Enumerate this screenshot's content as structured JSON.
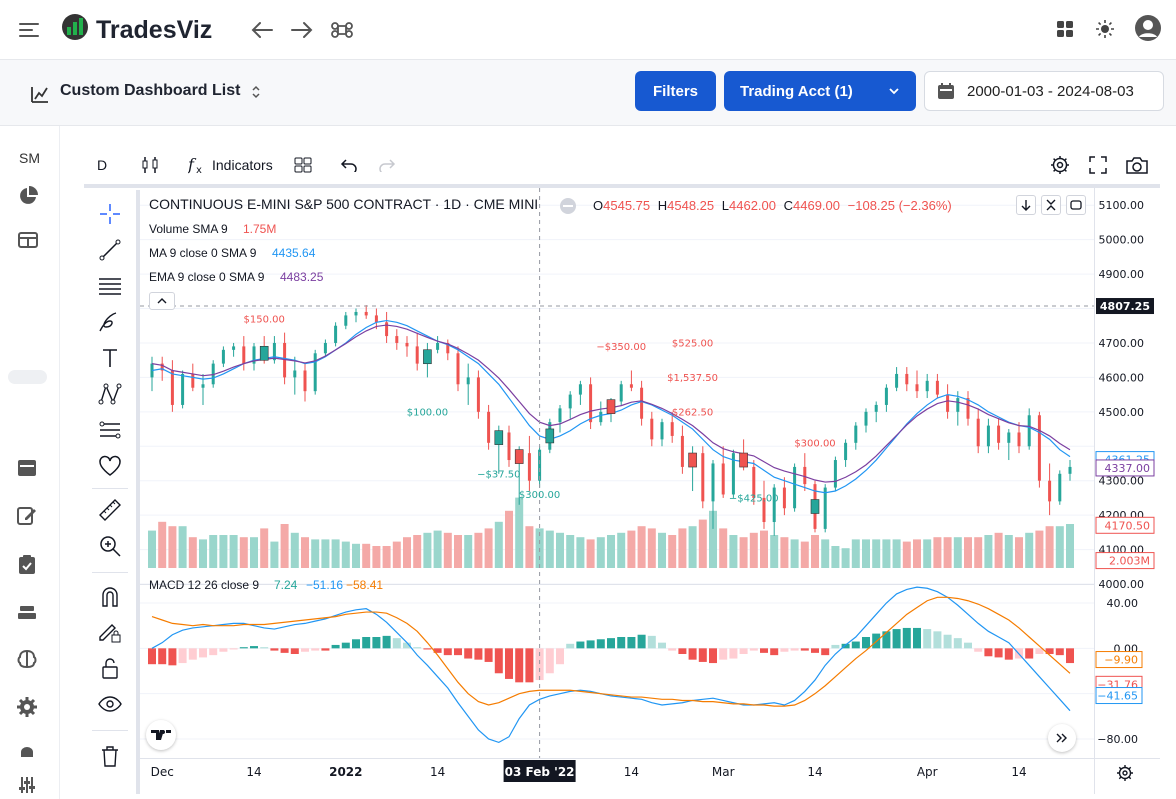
{
  "app": {
    "title": "TradesViz"
  },
  "subbar": {
    "dashboard_label": "Custom Dashboard List",
    "filters_label": "Filters",
    "account_label": "Trading Acct (1)",
    "date_range": "2000-01-03 - 2024-08-03"
  },
  "sidebar": {
    "sm_label": "SM"
  },
  "toolbar": {
    "interval": "D",
    "indicators_label": "Indicators"
  },
  "legend": {
    "symbol": "CONTINUOUS E-MINI S&P 500 CONTRACT · 1D · CME MINI",
    "o_label": "O",
    "o": "4545.75",
    "h_label": "H",
    "h": "4548.25",
    "l_label": "L",
    "l": "4462.00",
    "c_label": "C",
    "c": "4469.00",
    "change": "−108.25 (−2.36%)",
    "volume_label": "Volume SMA 9",
    "volume_value": "1.75M",
    "ma_label": "MA 9 close 0 SMA 9",
    "ma_value": "4435.64",
    "ema_label": "EMA 9 close 0 SMA 9",
    "ema_value": "4483.25",
    "macd_label": "MACD 12 26 close 9",
    "macd_v1": "7.24",
    "macd_v2": "−51.16",
    "macd_v3": "−58.41"
  },
  "price_axis": {
    "ticks": [
      "5100.00",
      "5000.00",
      "4900.00",
      "4807.25",
      "4700.00",
      "4600.00",
      "4500.00",
      "4361.25",
      "4337.00",
      "4300.00",
      "4200.00",
      "4170.50",
      "4100.00",
      "2.003M",
      "4000.00"
    ]
  },
  "macd_axis": {
    "ticks": [
      "40.00",
      "0.00",
      "−9.90",
      "−31.76",
      "−41.65",
      "−80.00"
    ]
  },
  "time_axis": {
    "ticks": [
      "Dec",
      "14",
      "2022",
      "14",
      "03 Feb '22",
      "14",
      "Mar",
      "14",
      "Apr",
      "14"
    ]
  },
  "trade_labels": [
    "$150.00",
    "$100.00",
    "−$37.50",
    "$300.00",
    "−$350.00",
    "$525.00",
    "$1,537.50",
    "$262.50",
    "−$425.00",
    "$300.00"
  ],
  "colors": {
    "accent": "#1759d1",
    "up": "#26a69a",
    "down": "#ef5350",
    "ma": "#2196f3",
    "ema": "#7b3fa0",
    "macd_signal": "#f57c00"
  },
  "chart_data": {
    "type": "candlestick",
    "title": "CONTINUOUS E-MINI S&P 500 CONTRACT · 1D · CME MINI",
    "ylim": [
      4000,
      5150
    ],
    "macd_ylim": [
      -95,
      55
    ],
    "crosshair_price": 4807.25,
    "x_labels": [
      "Dec",
      "14",
      "2022",
      "14",
      "03 Feb '22",
      "14",
      "Mar",
      "14",
      "Apr",
      "14"
    ],
    "x_label_index": [
      1,
      10,
      19,
      28,
      38,
      47,
      56,
      65,
      76,
      85
    ],
    "candles": [
      [
        4600,
        4660,
        4560,
        4640
      ],
      [
        4640,
        4660,
        4590,
        4620
      ],
      [
        4620,
        4650,
        4500,
        4520
      ],
      [
        4520,
        4620,
        4510,
        4610
      ],
      [
        4610,
        4640,
        4560,
        4570
      ],
      [
        4570,
        4610,
        4520,
        4580
      ],
      [
        4580,
        4650,
        4570,
        4640
      ],
      [
        4640,
        4690,
        4630,
        4680
      ],
      [
        4680,
        4700,
        4660,
        4690
      ],
      [
        4690,
        4720,
        4620,
        4640
      ],
      [
        4640,
        4700,
        4620,
        4690
      ],
      [
        4690,
        4720,
        4640,
        4650
      ],
      [
        4650,
        4720,
        4640,
        4700
      ],
      [
        4700,
        4730,
        4580,
        4600
      ],
      [
        4600,
        4660,
        4550,
        4620
      ],
      [
        4620,
        4640,
        4530,
        4560
      ],
      [
        4560,
        4680,
        4550,
        4670
      ],
      [
        4670,
        4710,
        4660,
        4700
      ],
      [
        4700,
        4760,
        4690,
        4750
      ],
      [
        4750,
        4790,
        4740,
        4780
      ],
      [
        4780,
        4800,
        4760,
        4790
      ],
      [
        4790,
        4810,
        4770,
        4780
      ],
      [
        4780,
        4800,
        4740,
        4760
      ],
      [
        4760,
        4790,
        4700,
        4720
      ],
      [
        4720,
        4740,
        4680,
        4700
      ],
      [
        4700,
        4720,
        4660,
        4690
      ],
      [
        4690,
        4730,
        4620,
        4640
      ],
      [
        4640,
        4700,
        4600,
        4680
      ],
      [
        4680,
        4720,
        4670,
        4700
      ],
      [
        4700,
        4710,
        4650,
        4670
      ],
      [
        4670,
        4690,
        4560,
        4580
      ],
      [
        4580,
        4640,
        4520,
        4600
      ],
      [
        4600,
        4620,
        4480,
        4500
      ],
      [
        4500,
        4520,
        4390,
        4410
      ],
      [
        4410,
        4460,
        4320,
        4440
      ],
      [
        4440,
        4460,
        4340,
        4360
      ],
      [
        4360,
        4400,
        4230,
        4380
      ],
      [
        4380,
        4430,
        4270,
        4300
      ],
      [
        4300,
        4400,
        4280,
        4390
      ],
      [
        4390,
        4480,
        4380,
        4470
      ],
      [
        4470,
        4520,
        4440,
        4510
      ],
      [
        4510,
        4560,
        4480,
        4550
      ],
      [
        4550,
        4590,
        4520,
        4580
      ],
      [
        4580,
        4600,
        4450,
        4470
      ],
      [
        4470,
        4530,
        4460,
        4500
      ],
      [
        4500,
        4540,
        4470,
        4530
      ],
      [
        4530,
        4590,
        4520,
        4580
      ],
      [
        4580,
        4620,
        4560,
        4570
      ],
      [
        4570,
        4590,
        4460,
        4480
      ],
      [
        4480,
        4500,
        4400,
        4420
      ],
      [
        4420,
        4480,
        4400,
        4470
      ],
      [
        4470,
        4500,
        4410,
        4430
      ],
      [
        4430,
        4460,
        4320,
        4340
      ],
      [
        4340,
        4400,
        4270,
        4380
      ],
      [
        4380,
        4400,
        4220,
        4240
      ],
      [
        4240,
        4360,
        4160,
        4350
      ],
      [
        4350,
        4400,
        4250,
        4260
      ],
      [
        4260,
        4390,
        4250,
        4380
      ],
      [
        4380,
        4420,
        4330,
        4340
      ],
      [
        4340,
        4360,
        4230,
        4250
      ],
      [
        4250,
        4300,
        4160,
        4180
      ],
      [
        4180,
        4290,
        4140,
        4280
      ],
      [
        4280,
        4310,
        4200,
        4220
      ],
      [
        4220,
        4350,
        4210,
        4340
      ],
      [
        4340,
        4380,
        4270,
        4290
      ],
      [
        4290,
        4300,
        4150,
        4160
      ],
      [
        4160,
        4290,
        4150,
        4280
      ],
      [
        4280,
        4370,
        4270,
        4360
      ],
      [
        4360,
        4420,
        4340,
        4410
      ],
      [
        4410,
        4470,
        4390,
        4460
      ],
      [
        4460,
        4510,
        4440,
        4500
      ],
      [
        4500,
        4530,
        4470,
        4520
      ],
      [
        4520,
        4580,
        4500,
        4570
      ],
      [
        4570,
        4630,
        4560,
        4610
      ],
      [
        4610,
        4630,
        4560,
        4580
      ],
      [
        4580,
        4620,
        4540,
        4560
      ],
      [
        4560,
        4610,
        4540,
        4590
      ],
      [
        4590,
        4610,
        4540,
        4550
      ],
      [
        4550,
        4580,
        4480,
        4500
      ],
      [
        4500,
        4560,
        4460,
        4540
      ],
      [
        4540,
        4560,
        4460,
        4480
      ],
      [
        4480,
        4510,
        4380,
        4400
      ],
      [
        4400,
        4480,
        4380,
        4460
      ],
      [
        4460,
        4480,
        4390,
        4410
      ],
      [
        4410,
        4450,
        4360,
        4440
      ],
      [
        4440,
        4470,
        4380,
        4400
      ],
      [
        4400,
        4510,
        4390,
        4490
      ],
      [
        4490,
        4500,
        4280,
        4300
      ],
      [
        4300,
        4350,
        4200,
        4240
      ],
      [
        4240,
        4330,
        4230,
        4320
      ],
      [
        4320,
        4360,
        4300,
        4340
      ]
    ],
    "volume": [
      1.7,
      2.1,
      1.9,
      1.9,
      1.4,
      1.3,
      1.5,
      1.5,
      1.5,
      1.4,
      1.4,
      1.8,
      1.2,
      2.0,
      1.6,
      1.4,
      1.3,
      1.3,
      1.3,
      1.2,
      1.1,
      1.1,
      1.0,
      1.0,
      1.2,
      1.4,
      1.5,
      1.6,
      1.7,
      1.6,
      1.5,
      1.5,
      1.6,
      1.8,
      2.1,
      2.6,
      3.2,
      1.9,
      1.8,
      1.7,
      1.6,
      1.5,
      1.4,
      1.3,
      1.4,
      1.5,
      1.6,
      1.7,
      1.9,
      1.8,
      1.6,
      1.5,
      1.8,
      1.9,
      2.2,
      2.6,
      1.8,
      1.5,
      1.4,
      1.6,
      1.7,
      1.5,
      1.4,
      1.3,
      1.2,
      1.5,
      1.3,
      1.0,
      0.9,
      1.3,
      1.3,
      1.3,
      1.3,
      1.3,
      1.2,
      1.3,
      1.3,
      1.4,
      1.4,
      1.4,
      1.4,
      1.4,
      1.5,
      1.6,
      1.5,
      1.4,
      1.6,
      1.7,
      1.9,
      1.9,
      2.0
    ],
    "ma": [
      4620,
      4625,
      4610,
      4605,
      4600,
      4595,
      4598,
      4610,
      4625,
      4640,
      4650,
      4655,
      4660,
      4655,
      4650,
      4640,
      4645,
      4660,
      4680,
      4700,
      4725,
      4745,
      4760,
      4765,
      4760,
      4750,
      4735,
      4720,
      4705,
      4695,
      4680,
      4660,
      4640,
      4610,
      4580,
      4540,
      4500,
      4460,
      4430,
      4420,
      4430,
      4445,
      4465,
      4480,
      4490,
      4495,
      4505,
      4520,
      4530,
      4520,
      4505,
      4490,
      4470,
      4450,
      4420,
      4390,
      4370,
      4360,
      4355,
      4350,
      4330,
      4310,
      4300,
      4290,
      4280,
      4270,
      4265,
      4270,
      4285,
      4305,
      4330,
      4360,
      4395,
      4430,
      4465,
      4495,
      4520,
      4540,
      4550,
      4545,
      4535,
      4520,
      4500,
      4485,
      4470,
      4460,
      4455,
      4440,
      4420,
      4390,
      4370
    ],
    "ema": [
      4640,
      4635,
      4620,
      4615,
      4610,
      4605,
      4608,
      4618,
      4630,
      4640,
      4648,
      4652,
      4656,
      4652,
      4648,
      4642,
      4648,
      4662,
      4680,
      4698,
      4718,
      4735,
      4748,
      4752,
      4748,
      4740,
      4728,
      4716,
      4705,
      4697,
      4684,
      4668,
      4650,
      4625,
      4598,
      4565,
      4530,
      4495,
      4470,
      4460,
      4465,
      4478,
      4492,
      4502,
      4508,
      4512,
      4518,
      4528,
      4532,
      4522,
      4510,
      4495,
      4478,
      4460,
      4436,
      4410,
      4393,
      4384,
      4378,
      4372,
      4355,
      4338,
      4328,
      4320,
      4312,
      4302,
      4296,
      4298,
      4310,
      4326,
      4346,
      4372,
      4402,
      4432,
      4462,
      4488,
      4508,
      4524,
      4532,
      4528,
      4520,
      4508,
      4492,
      4480,
      4468,
      4460,
      4458,
      4446,
      4430,
      4408,
      4390
    ],
    "macd_hist": [
      -14,
      -14,
      -15,
      -13,
      -10,
      -8,
      -6,
      -3,
      -1,
      1,
      2,
      1,
      -2,
      -4,
      -5,
      -3,
      -2,
      -2,
      3,
      5,
      8,
      10,
      10,
      11,
      9,
      5,
      1,
      -1,
      -4,
      -6,
      -6,
      -9,
      -10,
      -12,
      -22,
      -27,
      -30,
      -30,
      -28,
      -22,
      -14,
      4,
      6,
      7,
      8,
      9,
      10,
      10,
      12,
      11,
      5,
      -2,
      -5,
      -10,
      -12,
      -13,
      -10,
      -9,
      -5,
      -2,
      -4,
      -6,
      -3,
      -2,
      -2,
      -4,
      -6,
      3,
      4,
      6,
      10,
      13,
      15,
      17,
      18,
      18,
      17,
      15,
      12,
      9,
      5,
      -3,
      -7,
      -8,
      -10,
      -9,
      -9,
      -5,
      -5,
      -6,
      -13
    ],
    "macd_line": [
      0,
      5,
      12,
      16,
      18,
      19,
      20,
      21,
      22,
      22,
      20,
      18,
      17,
      19,
      21,
      22,
      24,
      26,
      29,
      32,
      34,
      35,
      30,
      23,
      14,
      5,
      -6,
      -15,
      -25,
      -35,
      -48,
      -60,
      -72,
      -80,
      -83,
      -78,
      -62,
      -50,
      -45,
      -42,
      -40,
      -38,
      -37,
      -38,
      -40,
      -42,
      -43,
      -44,
      -45,
      -48,
      -50,
      -49,
      -48,
      -46,
      -45,
      -44,
      -46,
      -48,
      -50,
      -50,
      -49,
      -48,
      -50,
      -46,
      -38,
      -28,
      -15,
      -5,
      3,
      10,
      20,
      30,
      40,
      48,
      52,
      54,
      53,
      50,
      45,
      38,
      30,
      22,
      15,
      10,
      5,
      -5,
      -15,
      -25,
      -35,
      -45,
      -55
    ],
    "macd_signal": [
      28,
      25,
      22,
      21,
      20,
      21,
      20,
      20,
      20,
      21,
      21,
      21,
      22,
      23,
      24,
      25,
      26,
      27,
      28,
      30,
      31,
      32,
      32,
      31,
      27,
      22,
      15,
      5,
      -6,
      -18,
      -30,
      -40,
      -47,
      -50,
      -48,
      -44,
      -40,
      -38,
      -37,
      -37,
      -37,
      -37,
      -38,
      -39,
      -40,
      -41,
      -42,
      -43,
      -43,
      -44,
      -45,
      -45,
      -46,
      -46,
      -47,
      -47,
      -48,
      -49,
      -49,
      -50,
      -50,
      -51,
      -51,
      -50,
      -46,
      -40,
      -33,
      -25,
      -17,
      -9,
      -2,
      6,
      14,
      22,
      30,
      36,
      42,
      45,
      45,
      44,
      42,
      39,
      35,
      30,
      25,
      18,
      10,
      2,
      -6,
      -14,
      -22
    ]
  }
}
